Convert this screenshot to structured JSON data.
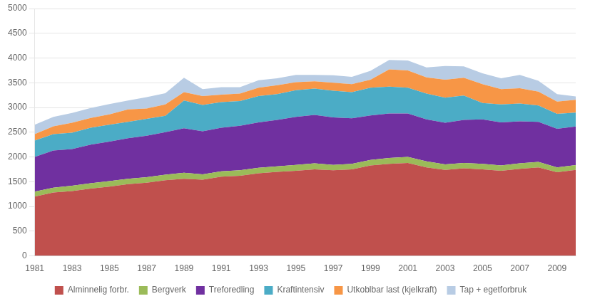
{
  "chart_data": {
    "type": "area",
    "stacked": true,
    "x": [
      1981,
      1982,
      1983,
      1984,
      1985,
      1986,
      1987,
      1988,
      1989,
      1990,
      1991,
      1992,
      1993,
      1994,
      1995,
      1996,
      1997,
      1998,
      1999,
      2000,
      2001,
      2002,
      2003,
      2004,
      2005,
      2006,
      2007,
      2008,
      2009,
      2010
    ],
    "series": [
      {
        "name": "Alminnelig forbr.",
        "color": "#C0504D",
        "values": [
          1200,
          1280,
          1310,
          1360,
          1400,
          1450,
          1480,
          1530,
          1560,
          1540,
          1600,
          1620,
          1670,
          1700,
          1720,
          1750,
          1730,
          1750,
          1830,
          1860,
          1880,
          1790,
          1740,
          1770,
          1750,
          1720,
          1760,
          1790,
          1690,
          1740
        ]
      },
      {
        "name": "Bergverk",
        "color": "#9BBB59",
        "values": [
          100,
          100,
          110,
          110,
          110,
          110,
          110,
          110,
          120,
          110,
          110,
          110,
          110,
          110,
          120,
          120,
          110,
          110,
          110,
          120,
          120,
          120,
          110,
          110,
          110,
          110,
          110,
          110,
          100,
          95
        ]
      },
      {
        "name": "Treforedling",
        "color": "#7030A0",
        "values": [
          700,
          750,
          740,
          780,
          800,
          820,
          840,
          860,
          900,
          870,
          880,
          900,
          920,
          940,
          970,
          980,
          960,
          920,
          900,
          900,
          880,
          850,
          840,
          870,
          900,
          870,
          850,
          810,
          780,
          780
        ]
      },
      {
        "name": "Kraftintensiv",
        "color": "#4BACC6",
        "values": [
          330,
          330,
          330,
          340,
          340,
          330,
          340,
          330,
          560,
          530,
          520,
          500,
          530,
          520,
          540,
          530,
          540,
          530,
          560,
          540,
          520,
          520,
          510,
          490,
          330,
          360,
          360,
          330,
          300,
          280
        ]
      },
      {
        "name": "Utkoblbar last (kjelkraft)",
        "color": "#F79646",
        "values": [
          130,
          160,
          200,
          200,
          210,
          250,
          210,
          230,
          170,
          180,
          150,
          150,
          170,
          180,
          160,
          150,
          160,
          160,
          160,
          350,
          350,
          330,
          360,
          360,
          380,
          310,
          310,
          280,
          250,
          260
        ]
      },
      {
        "name": "Tap + egetforbruk",
        "color": "#B8CCE4",
        "values": [
          190,
          190,
          200,
          200,
          210,
          180,
          230,
          230,
          290,
          140,
          150,
          130,
          150,
          140,
          150,
          130,
          150,
          150,
          180,
          190,
          200,
          200,
          280,
          230,
          220,
          220,
          270,
          220,
          150,
          70
        ]
      }
    ],
    "xlim": [
      1981,
      2010
    ],
    "xticks": [
      1981,
      1983,
      1985,
      1987,
      1989,
      1991,
      1993,
      1995,
      1997,
      1999,
      2001,
      2003,
      2005,
      2007,
      2009
    ],
    "ylim": [
      0,
      5000
    ],
    "yticks": [
      0,
      500,
      1000,
      1500,
      2000,
      2500,
      3000,
      3500,
      4000,
      4500,
      5000
    ],
    "grid": "y",
    "legend": "bottom"
  }
}
